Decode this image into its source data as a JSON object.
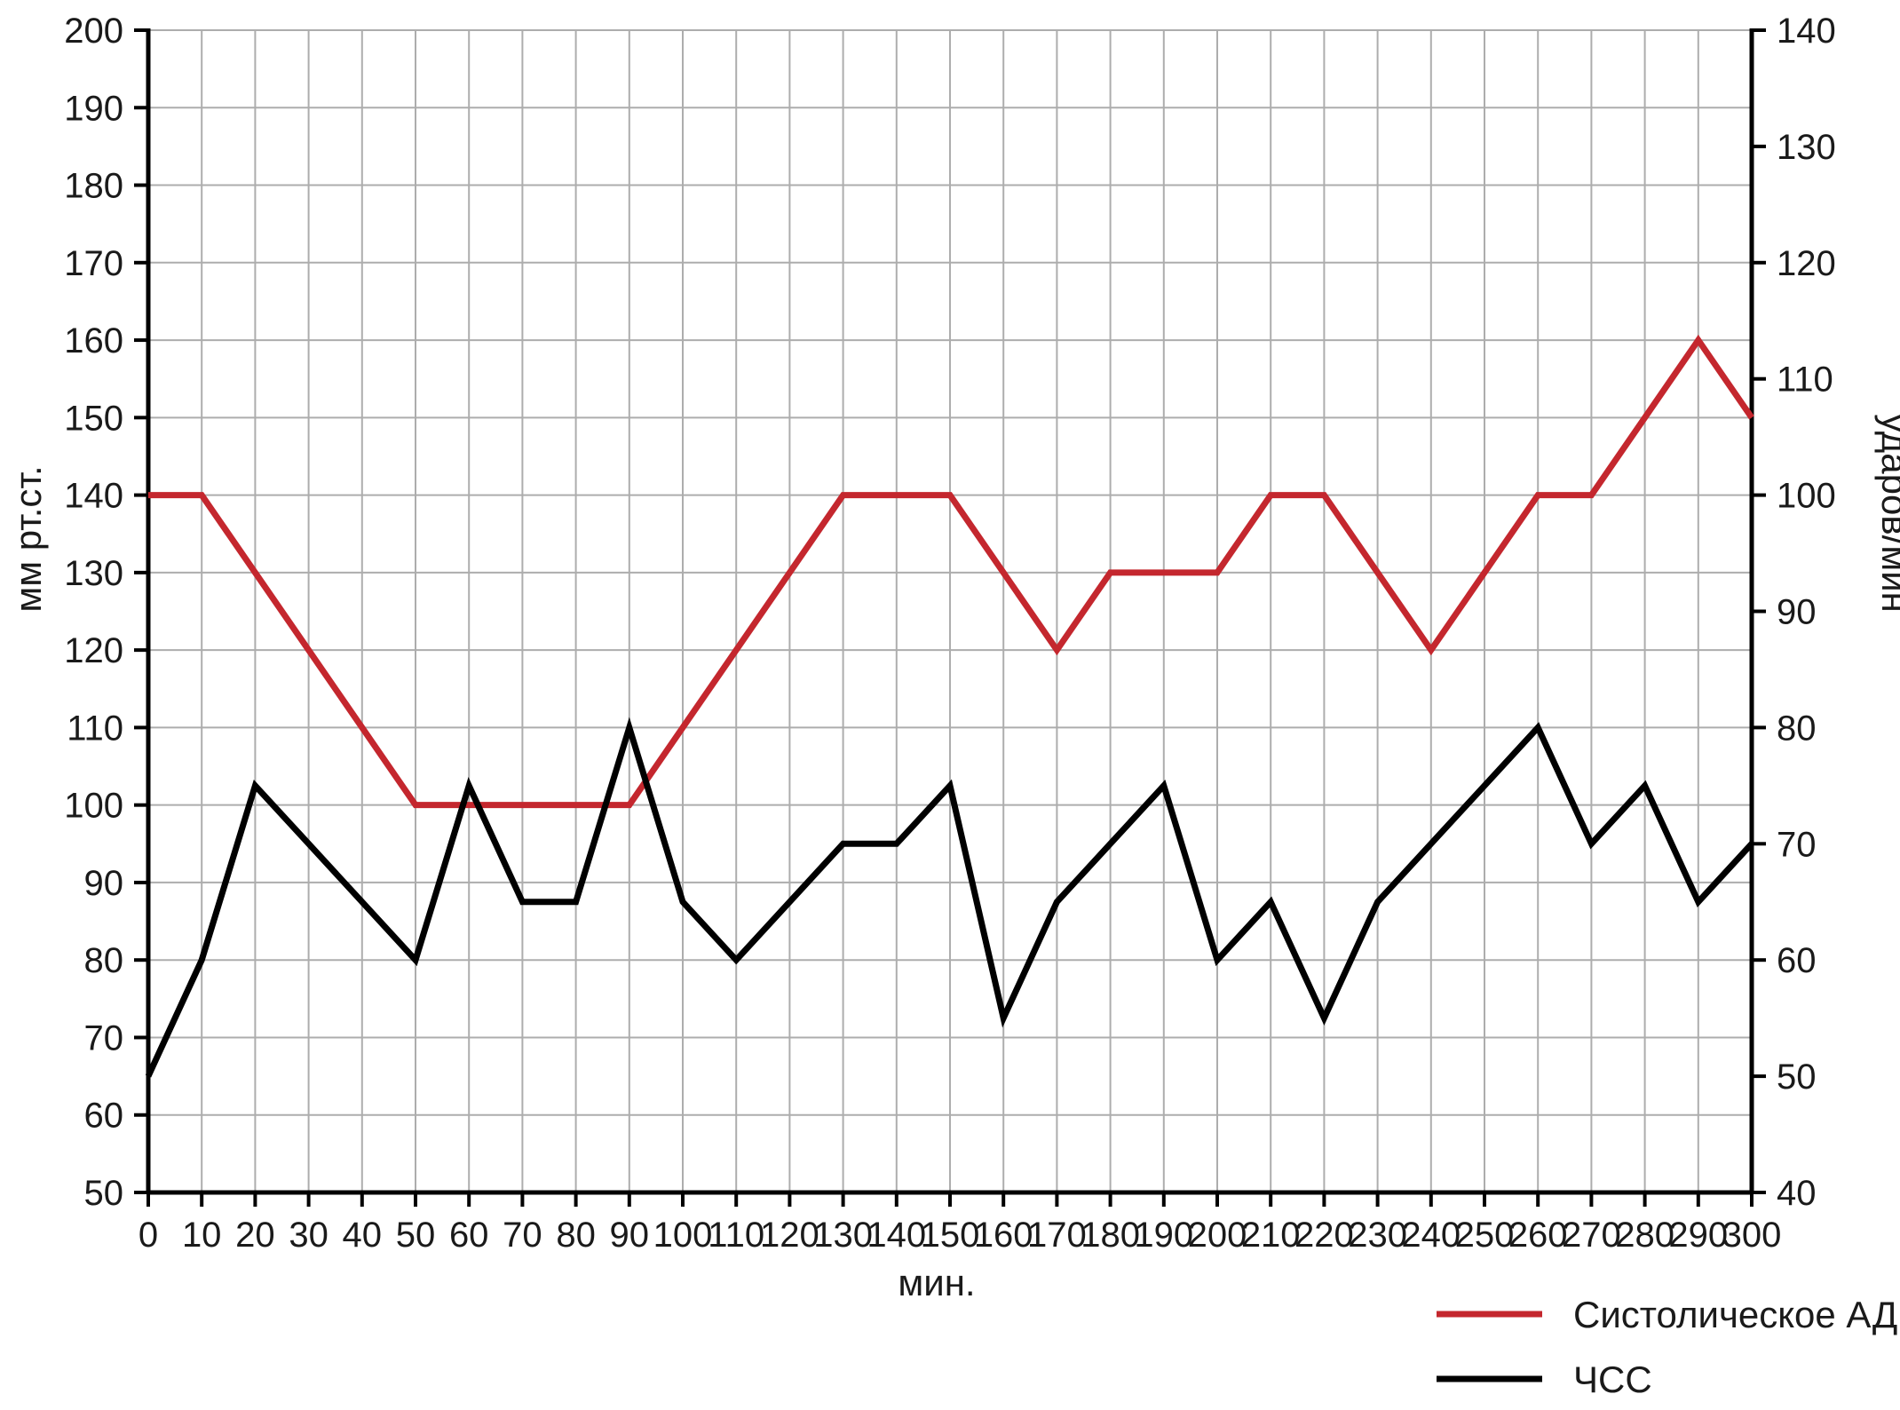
{
  "chart_data": {
    "type": "line",
    "x": [
      0,
      10,
      20,
      30,
      40,
      50,
      60,
      70,
      80,
      90,
      100,
      110,
      120,
      130,
      140,
      150,
      160,
      170,
      180,
      190,
      200,
      210,
      220,
      230,
      240,
      250,
      260,
      270,
      280,
      290,
      300
    ],
    "xlabel": "мин.",
    "x_axis": {
      "min": 0,
      "max": 300,
      "tick_step": 10
    },
    "left_axis": {
      "label": "мм рт.ст.",
      "min": 50,
      "max": 200,
      "tick_step": 10
    },
    "right_axis": {
      "label": "ударов/мин",
      "min": 40,
      "max": 140,
      "tick_step": 10
    },
    "grid": true,
    "legend_position": "bottom-right",
    "series": [
      {
        "name": "Систолическое АД",
        "axis": "left",
        "color": "#c4272e",
        "values": [
          140,
          140,
          130,
          120,
          110,
          100,
          100,
          100,
          100,
          100,
          110,
          120,
          130,
          140,
          140,
          140,
          130,
          120,
          130,
          130,
          130,
          140,
          140,
          130,
          120,
          130,
          140,
          140,
          150,
          160,
          150
        ]
      },
      {
        "name": "ЧСС",
        "axis": "right",
        "color": "#000000",
        "values": [
          50,
          60,
          75,
          70,
          65,
          60,
          75,
          65,
          65,
          80,
          65,
          60,
          65,
          70,
          70,
          75,
          55,
          65,
          70,
          75,
          60,
          65,
          55,
          65,
          70,
          75,
          80,
          70,
          75,
          65,
          70
        ]
      }
    ]
  },
  "style": {
    "grid_color": "#adadad",
    "axis_color": "#000000",
    "background": "#ffffff",
    "series_stroke_width": 7,
    "grid_stroke_width": 2,
    "axis_stroke_width": 5,
    "tick_len": 16
  }
}
